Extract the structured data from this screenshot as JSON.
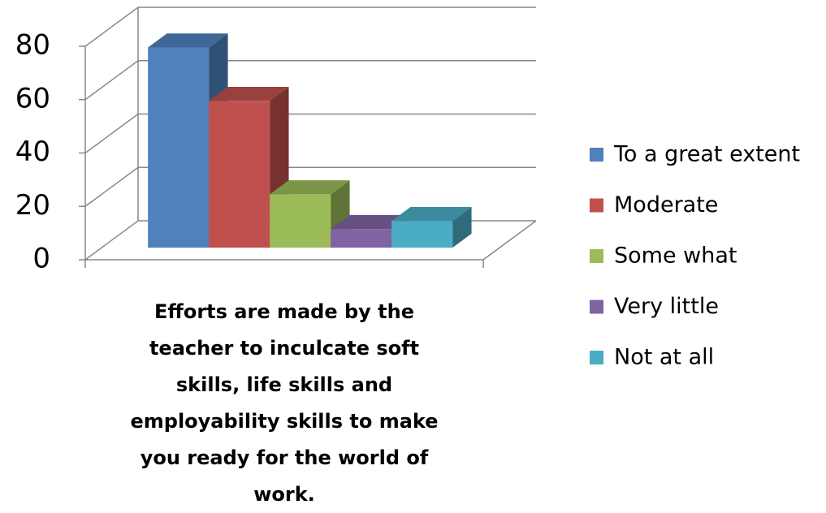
{
  "chart_data": {
    "type": "bar3d",
    "categories": [
      "Efforts are made by the teacher to inculcate soft skills, life skills and employability skills to make you ready for the world of work."
    ],
    "series": [
      {
        "name": "To a great extent",
        "color": "#4f81bd",
        "values": [
          75
        ]
      },
      {
        "name": "Moderate",
        "color": "#c0504d",
        "values": [
          55
        ]
      },
      {
        "name": "Some what",
        "color": "#9bbb59",
        "values": [
          20
        ]
      },
      {
        "name": "Very little",
        "color": "#8064a2",
        "values": [
          7
        ]
      },
      {
        "name": "Not at all",
        "color": "#4bacc6",
        "values": [
          10
        ]
      }
    ],
    "ylim": [
      0,
      80
    ],
    "yticks": [
      0,
      20,
      40,
      60,
      80
    ],
    "grid": true,
    "legend": "right"
  }
}
